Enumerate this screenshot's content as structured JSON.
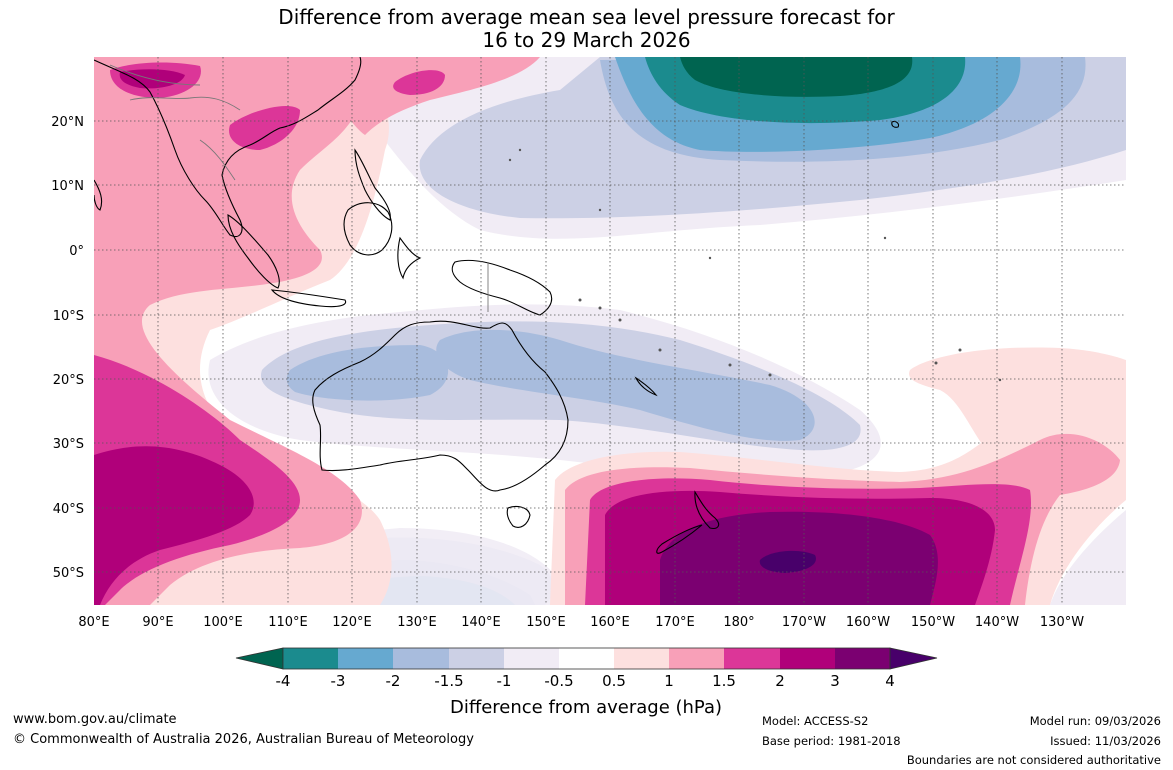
{
  "title": {
    "line1": "Difference from average mean sea level pressure forecast for",
    "line2": "16 to 29 March 2026"
  },
  "axes": {
    "lat_labels": [
      "20°N",
      "10°N",
      "0°",
      "10°S",
      "20°S",
      "30°S",
      "40°S",
      "50°S"
    ],
    "lon_labels": [
      "80°E",
      "90°E",
      "100°E",
      "110°E",
      "120°E",
      "130°E",
      "140°E",
      "150°E",
      "160°E",
      "170°E",
      "180°",
      "170°W",
      "160°W",
      "150°W",
      "140°W",
      "130°W"
    ]
  },
  "legend": {
    "title": "Difference from average (hPa)",
    "ticks": [
      "-4",
      "-3",
      "-2",
      "-1.5",
      "-1",
      "-0.5",
      "0.5",
      "1",
      "1.5",
      "2",
      "3",
      "4"
    ],
    "colors": {
      "lt_-4": "#006450",
      "-4_-3": "#1b8b8e",
      "-3_-2": "#66a9d0",
      "-2_-1.5": "#a8bcdd",
      "-1.5_-1": "#ccd0e5",
      "-1_-0.5": "#f1ecf5",
      "-0.5_0.5": "#ffffff",
      "0.5_1": "#fde0df",
      "1_1.5": "#f8a0b8",
      "1.5_2": "#dc3698",
      "2_3": "#b0007a",
      "3_4": "#7b0071",
      "gt_4": "#48006a"
    }
  },
  "footer": {
    "website": "www.bom.gov.au/climate",
    "copyright": "© Commonwealth of Australia 2026, Australian Bureau of Meteorology",
    "model": "Model: ACCESS-S2",
    "base_period": "Base period: 1981-2018",
    "model_run": "Model run: 09/03/2026",
    "issued": "Issued: 11/03/2026",
    "disclaimer": "Boundaries are not considered authoritative"
  }
}
